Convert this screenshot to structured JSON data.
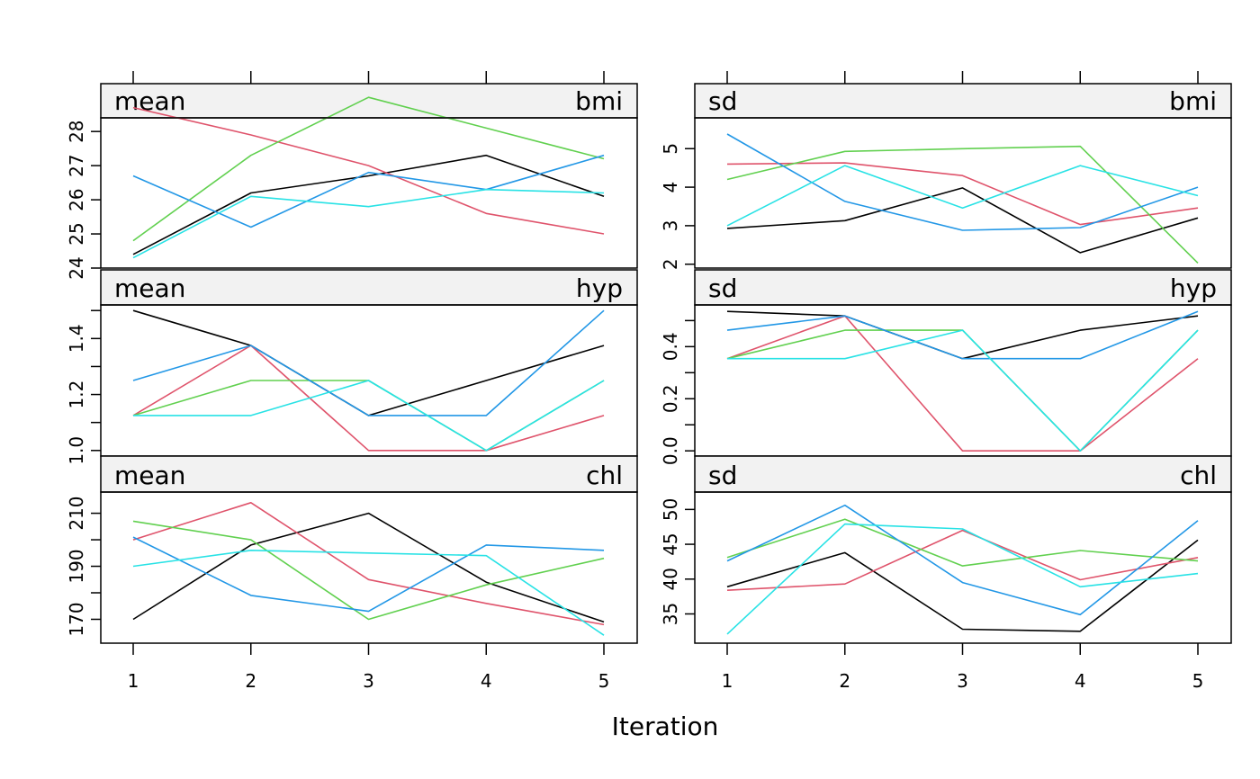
{
  "chart_data": {
    "type": "line",
    "xlabel": "Iteration",
    "x": [
      1,
      2,
      3,
      4,
      5
    ],
    "x_ticks": [
      "1",
      "2",
      "3",
      "4",
      "5"
    ],
    "series_colors": [
      "#000000",
      "#DF536B",
      "#61D04F",
      "#2297E6",
      "#28E2E5"
    ],
    "panels": [
      {
        "row": 0,
        "col": 0,
        "stat": "mean",
        "variable": "bmi",
        "ylim": [
          24,
          28.4
        ],
        "y_ticks": [
          24,
          25,
          26,
          27,
          28
        ],
        "y_tick_labels": [
          "24",
          "25",
          "26",
          "27",
          "28"
        ],
        "series": [
          {
            "values": [
              24.4,
              26.2,
              26.7,
              27.3,
              26.1
            ]
          },
          {
            "values": [
              28.7,
              27.9,
              27.0,
              25.6,
              25.0
            ]
          },
          {
            "values": [
              24.8,
              27.3,
              29.0,
              28.1,
              27.2
            ]
          },
          {
            "values": [
              26.7,
              25.2,
              26.8,
              26.3,
              27.3
            ]
          },
          {
            "values": [
              24.3,
              26.1,
              25.8,
              26.3,
              26.2
            ]
          }
        ]
      },
      {
        "row": 0,
        "col": 1,
        "stat": "sd",
        "variable": "bmi",
        "ylim": [
          1.9,
          5.8
        ],
        "y_ticks": [
          2,
          3,
          4,
          5
        ],
        "y_tick_labels": [
          "2",
          "3",
          "4",
          "5"
        ],
        "series": [
          {
            "values": [
              2.93,
              3.13,
              3.98,
              2.3,
              3.2
            ]
          },
          {
            "values": [
              4.6,
              4.63,
              4.3,
              3.03,
              3.46
            ]
          },
          {
            "values": [
              4.2,
              4.93,
              5.0,
              5.06,
              2.03
            ]
          },
          {
            "values": [
              5.38,
              3.63,
              2.88,
              2.95,
              4.0
            ]
          },
          {
            "values": [
              3.0,
              4.56,
              3.46,
              4.56,
              3.78
            ]
          }
        ]
      },
      {
        "row": 1,
        "col": 0,
        "stat": "mean",
        "variable": "hyp",
        "ylim": [
          0.98,
          1.52
        ],
        "y_ticks": [
          1.0,
          1.1,
          1.2,
          1.3,
          1.4,
          1.5
        ],
        "y_tick_labels": [
          "1.0",
          "",
          "1.2",
          "",
          "1.4",
          ""
        ],
        "series": [
          {
            "values": [
              1.5,
              1.375,
              1.125,
              1.25,
              1.375
            ]
          },
          {
            "values": [
              1.125,
              1.375,
              1.0,
              1.0,
              1.125
            ]
          },
          {
            "values": [
              1.125,
              1.25,
              1.25,
              1.0,
              1.25
            ]
          },
          {
            "values": [
              1.25,
              1.375,
              1.125,
              1.125,
              1.5
            ]
          },
          {
            "values": [
              1.125,
              1.125,
              1.25,
              1.0,
              1.25
            ]
          }
        ]
      },
      {
        "row": 1,
        "col": 1,
        "stat": "sd",
        "variable": "hyp",
        "ylim": [
          -0.02,
          0.56
        ],
        "y_ticks": [
          0.0,
          0.1,
          0.2,
          0.3,
          0.4,
          0.5
        ],
        "y_tick_labels": [
          "0.0",
          "",
          "0.2",
          "",
          "0.4",
          ""
        ],
        "series": [
          {
            "values": [
              0.535,
              0.518,
              0.354,
              0.463,
              0.518
            ]
          },
          {
            "values": [
              0.354,
              0.518,
              0.0,
              0.0,
              0.354
            ]
          },
          {
            "values": [
              0.354,
              0.463,
              0.463,
              0.0,
              0.463
            ]
          },
          {
            "values": [
              0.463,
              0.518,
              0.354,
              0.354,
              0.535
            ]
          },
          {
            "values": [
              0.354,
              0.354,
              0.463,
              0.0,
              0.463
            ]
          }
        ]
      },
      {
        "row": 2,
        "col": 0,
        "stat": "mean",
        "variable": "chl",
        "ylim": [
          161,
          218
        ],
        "y_ticks": [
          170,
          180,
          190,
          200,
          210
        ],
        "y_tick_labels": [
          "170",
          "",
          "190",
          "",
          "210"
        ],
        "series": [
          {
            "values": [
              170,
              198,
              210,
              184,
              169
            ]
          },
          {
            "values": [
              200,
              214,
              185,
              176,
              168
            ]
          },
          {
            "values": [
              207,
              200,
              170,
              183,
              193
            ]
          },
          {
            "values": [
              201,
              179,
              173,
              198,
              196
            ]
          },
          {
            "values": [
              190,
              196,
              195,
              194,
              164
            ]
          }
        ]
      },
      {
        "row": 2,
        "col": 1,
        "stat": "sd",
        "variable": "chl",
        "ylim": [
          30.8,
          52.5
        ],
        "y_ticks": [
          35,
          40,
          45,
          50
        ],
        "y_tick_labels": [
          "35",
          "40",
          "45",
          "50"
        ],
        "series": [
          {
            "values": [
              38.9,
              43.8,
              32.8,
              32.5,
              45.6
            ]
          },
          {
            "values": [
              38.4,
              39.3,
              47.0,
              39.9,
              43.1
            ]
          },
          {
            "values": [
              43.1,
              48.6,
              41.9,
              44.1,
              42.6
            ]
          },
          {
            "values": [
              42.6,
              50.6,
              39.5,
              34.9,
              48.4
            ]
          },
          {
            "values": [
              32.1,
              47.9,
              47.2,
              38.9,
              40.8
            ]
          }
        ]
      }
    ]
  }
}
